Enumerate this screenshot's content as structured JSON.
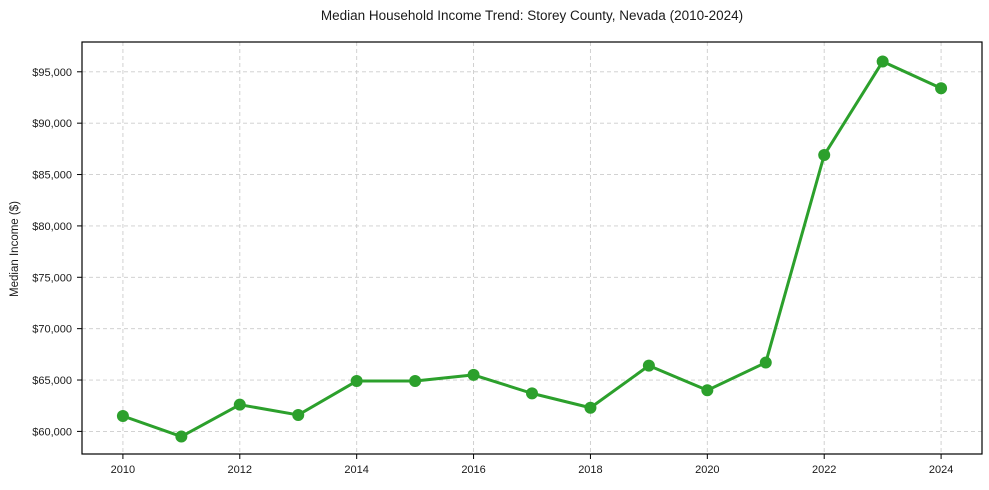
{
  "title": "Median Household Income Trend: Storey County, Nevada (2010-2024)",
  "chart_data": {
    "type": "line",
    "title": "Median Household Income Trend: Storey County, Nevada (2010-2024)",
    "xlabel": "",
    "ylabel": "Median Income ($)",
    "series_name": "Median Household Income",
    "x": [
      2010,
      2011,
      2012,
      2013,
      2014,
      2015,
      2016,
      2017,
      2018,
      2019,
      2020,
      2021,
      2022,
      2023,
      2024
    ],
    "values": [
      61500,
      59500,
      62600,
      61600,
      64900,
      64900,
      65500,
      63700,
      62300,
      66400,
      64000,
      66700,
      86900,
      96000,
      93400
    ],
    "x_ticks": [
      2010,
      2012,
      2014,
      2016,
      2018,
      2020,
      2022,
      2024
    ],
    "x_tick_labels": [
      "2010",
      "2012",
      "2014",
      "2016",
      "2018",
      "2020",
      "2022",
      "2024"
    ],
    "y_ticks": [
      60000,
      65000,
      70000,
      75000,
      80000,
      85000,
      90000,
      95000
    ],
    "y_tick_labels": [
      "$60,000",
      "$65,000",
      "$70,000",
      "$75,000",
      "$80,000",
      "$85,000",
      "$90,000",
      "$95,000"
    ],
    "xlim": [
      2009.3,
      2024.7
    ],
    "ylim": [
      57800,
      97900
    ],
    "grid": true,
    "legend_position": "none",
    "line_color": "#2ca02c",
    "marker": "circle",
    "marker_color": "#2ca02c",
    "gridline_color": "#cccccc",
    "spine_color": "#000000",
    "background_color": "#ffffff"
  }
}
